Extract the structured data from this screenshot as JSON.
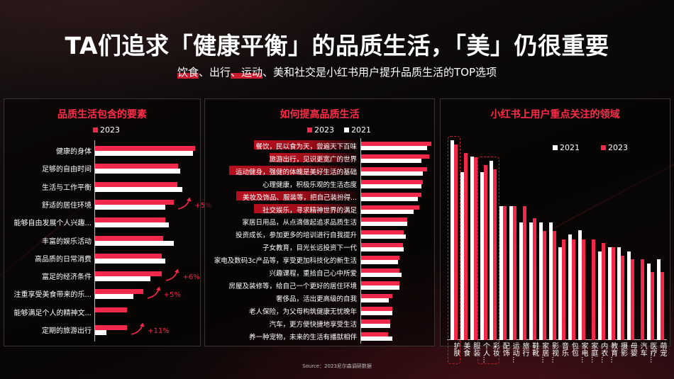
{
  "header": {
    "title": "TA们追求「健康平衡」的品质生活，「美」仍很重要",
    "subtitle_parts": [
      {
        "text": "饮食",
        "highlight": true
      },
      {
        "text": "、出行",
        "highlight": false
      },
      {
        "text": "、运动",
        "highlight": true
      },
      {
        "text": "、美和社交",
        "highlight": false
      },
      {
        "text": "是小红书用户提升品质生活的TOP选项",
        "highlight": false
      }
    ]
  },
  "colors": {
    "accent": "#f2294a",
    "title_red": "#ff2d48",
    "bar_white": "#ffffff",
    "background": "#0b0808"
  },
  "panels": {
    "left": {
      "title": "品质生活包含的要素",
      "legend": [
        {
          "label": "2023",
          "color": "red"
        }
      ]
    },
    "middle": {
      "title": "如何提高品质生活",
      "legend": [
        {
          "label": "2023",
          "color": "red"
        },
        {
          "label": "2021",
          "color": "white"
        }
      ]
    },
    "right": {
      "title": "小红书上用户重点关注的领域",
      "legend": [
        {
          "label": "2021",
          "color": "white"
        },
        {
          "label": "2023",
          "color": "red"
        }
      ]
    }
  },
  "chart_data": [
    {
      "type": "bar",
      "orientation": "horizontal",
      "title": "品质生活包含的要素",
      "legend": [
        "2023"
      ],
      "categories": [
        "健康的身体",
        "足够的自由时间",
        "生活与工作平衡",
        "舒适的居住环境",
        "能够自由发展个人兴趣...",
        "丰富的娱乐活动",
        "高品质的日常消费",
        "富足的经济条件",
        "注重享受美食带来的乐...",
        "能够满足个人的精神文...",
        "定期的旅游出行"
      ],
      "series": [
        {
          "name": "2023",
          "color": "#f2294a",
          "values": [
            100,
            83,
            82,
            79,
            70,
            68,
            67,
            67,
            48,
            32,
            32
          ]
        },
        {
          "name": "2021",
          "color": "#ffffff",
          "values": [
            98,
            85,
            87,
            70,
            74,
            79,
            70,
            55,
            38,
            0,
            11
          ]
        }
      ],
      "annotations": [
        {
          "category": "舒适的居住环境",
          "text": "+5%"
        },
        {
          "category": "富足的经济条件",
          "text": "+6%"
        },
        {
          "category": "注重享受美食带来的乐...",
          "text": "+5%"
        },
        {
          "category": "定期的旅游出行",
          "text": "+11%"
        }
      ],
      "xlim": [
        0,
        100
      ],
      "grid": false
    },
    {
      "type": "bar",
      "orientation": "horizontal",
      "title": "如何提高品质生活",
      "legend": [
        "2023",
        "2021"
      ],
      "categories": [
        "餐饮，民以食为天，尝遍天下百味",
        "旅游出行，见识更宽广的世界",
        "运动健身，强健的体魄是美好生活的基础",
        "心理健康，积极乐观的生活态度",
        "美妆及饰品、服装等，把自己装扮得...",
        "社交娱乐，寻求精神世界的满足",
        "家居日用品，从点滴做起追求品质生活",
        "投资成长，参加更多的培训进行自我提升",
        "子女教育，目光长远投资下一代",
        "家电及数码3c产品等，享受更加科技化的新生活",
        "兴趣课程，重拾自己心中所爱",
        "房屋及装修等，给自己一个更好的居住环境",
        "奢侈品，活出更高级的自我",
        "老人保险，为父母构筑健康无忧晚年",
        "汽车，更方便快捷地享受生活",
        "养一种宠物，未来的生活有播獃相伴"
      ],
      "highlighted": [
        0,
        1,
        2,
        4,
        5
      ],
      "series": [
        {
          "name": "2023",
          "color": "#f2294a",
          "values": [
            100,
            97,
            94,
            88,
            86,
            83,
            66,
            61,
            60,
            55,
            55,
            55,
            44,
            44,
            41,
            38
          ]
        },
        {
          "name": "2021",
          "color": "#ffffff",
          "values": [
            94,
            86,
            88,
            86,
            81,
            75,
            66,
            64,
            61,
            53,
            58,
            55,
            39,
            44,
            41,
            44
          ]
        }
      ],
      "xlim": [
        0,
        100
      ],
      "grid": false
    },
    {
      "type": "bar",
      "orientation": "vertical",
      "title": "小红书上用户重点关注的领域",
      "legend": [
        "2021",
        "2023"
      ],
      "categories": [
        "护肤",
        "美食",
        "服装",
        "个人...",
        "彩妆",
        "配饰",
        "运动...",
        "旅行",
        "鞋靴",
        "家居...",
        "影视...",
        "音乐",
        "包包",
        "家电...",
        "家庭...",
        "内衣...",
        "教育...",
        "摄影",
        "母婴",
        "汽车",
        "医疗...",
        "萌宠"
      ],
      "highlighted_groups": [
        [
          0
        ],
        [
          3,
          4
        ]
      ],
      "series": [
        {
          "name": "2021",
          "color": "#ffffff",
          "values": [
            282,
            237,
            259,
            237,
            253,
            189,
            189,
            166,
            166,
            166,
            166,
            131,
            149,
            155,
            0,
            125,
            131,
            131,
            125,
            0,
            108,
            114
          ]
        },
        {
          "name": "2023",
          "color": "#f2294a",
          "values": [
            276,
            264,
            258,
            247,
            241,
            189,
            189,
            189,
            172,
            154,
            154,
            142,
            142,
            142,
            142,
            137,
            131,
            119,
            114,
            114,
            96,
            96
          ]
        }
      ],
      "ylim": [
        0,
        290
      ],
      "grid": false
    }
  ],
  "footer": {
    "source": "Source：2023尼尔森调研数据"
  }
}
